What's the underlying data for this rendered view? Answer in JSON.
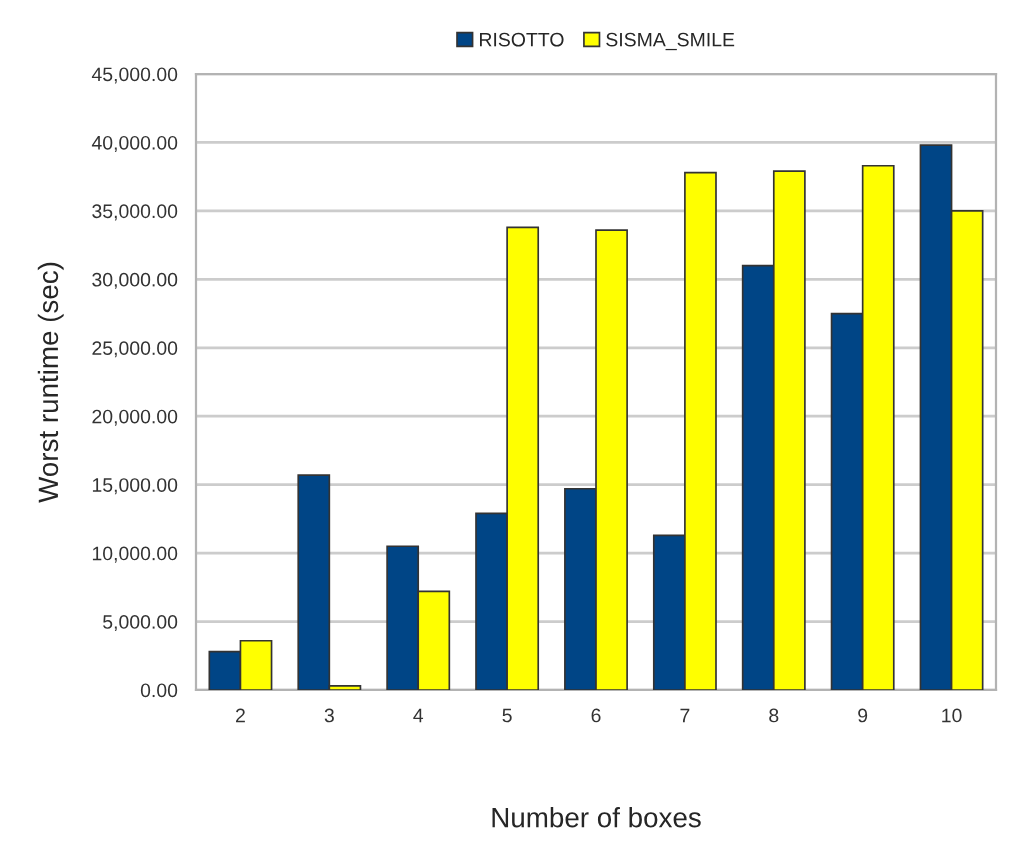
{
  "chart_data": {
    "type": "bar",
    "xlabel": "Number of boxes",
    "ylabel": "Worst runtime (sec)",
    "categories": [
      "2",
      "3",
      "4",
      "5",
      "6",
      "7",
      "8",
      "9",
      "10"
    ],
    "series": [
      {
        "name": "RISOTTO",
        "color": "#004586",
        "values": [
          2800,
          15700,
          10500,
          12900,
          14700,
          11300,
          31000,
          27500,
          39800
        ]
      },
      {
        "name": "SISMA_SMILE",
        "color": "#ffff00",
        "values": [
          3600,
          300,
          7200,
          33800,
          33600,
          37800,
          37900,
          38300,
          35000
        ]
      }
    ],
    "ylim": [
      0,
      45000
    ],
    "yticks": [
      {
        "value": 0,
        "label": "0.00"
      },
      {
        "value": 5000,
        "label": "5,000.00"
      },
      {
        "value": 10000,
        "label": "10,000.00"
      },
      {
        "value": 15000,
        "label": "15,000.00"
      },
      {
        "value": 20000,
        "label": "20,000.00"
      },
      {
        "value": 25000,
        "label": "25,000.00"
      },
      {
        "value": 30000,
        "label": "30,000.00"
      },
      {
        "value": 35000,
        "label": "35,000.00"
      },
      {
        "value": 40000,
        "label": "40,000.00"
      },
      {
        "value": 45000,
        "label": "45,000.00"
      }
    ],
    "grid": "y",
    "legend": "top"
  }
}
